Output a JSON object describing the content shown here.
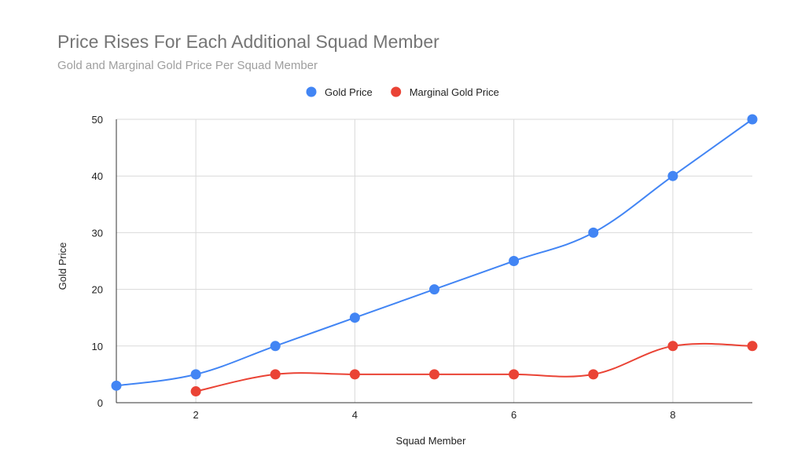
{
  "chart_data": {
    "type": "line",
    "title": "Price Rises For Each Additional Squad Member",
    "subtitle": "Gold and Marginal Gold Price Per Squad Member",
    "xlabel": "Squad Member",
    "ylabel": "Gold Price",
    "xlim": [
      1,
      9
    ],
    "ylim": [
      0,
      50
    ],
    "x_ticks": [
      2,
      4,
      6,
      8
    ],
    "y_ticks": [
      0,
      10,
      20,
      30,
      40,
      50
    ],
    "grid": true,
    "legend_position": "top-center",
    "series": [
      {
        "name": "Gold Price",
        "color": "#4285f4",
        "x": [
          1,
          2,
          3,
          4,
          5,
          6,
          7,
          8,
          9
        ],
        "values": [
          3,
          5,
          10,
          15,
          20,
          25,
          30,
          40,
          50
        ]
      },
      {
        "name": "Marginal Gold Price",
        "color": "#ea4335",
        "x": [
          2,
          3,
          4,
          5,
          6,
          7,
          8,
          9
        ],
        "values": [
          2,
          5,
          5,
          5,
          5,
          5,
          10,
          10
        ]
      }
    ]
  }
}
